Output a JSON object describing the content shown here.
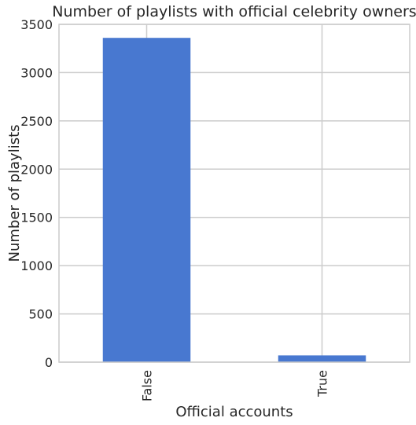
{
  "chart_data": {
    "type": "bar",
    "title": "Number of playlists with official celebrity owners",
    "xlabel": "Official accounts",
    "ylabel": "Number of playlists",
    "categories": [
      "False",
      "True"
    ],
    "values": [
      3360,
      70
    ],
    "ylim": [
      0,
      3500
    ],
    "yticks": [
      0,
      500,
      1000,
      1500,
      2000,
      2500,
      3000,
      3500
    ],
    "bar_color": "#4878d0",
    "grid": true,
    "legend": "none"
  }
}
